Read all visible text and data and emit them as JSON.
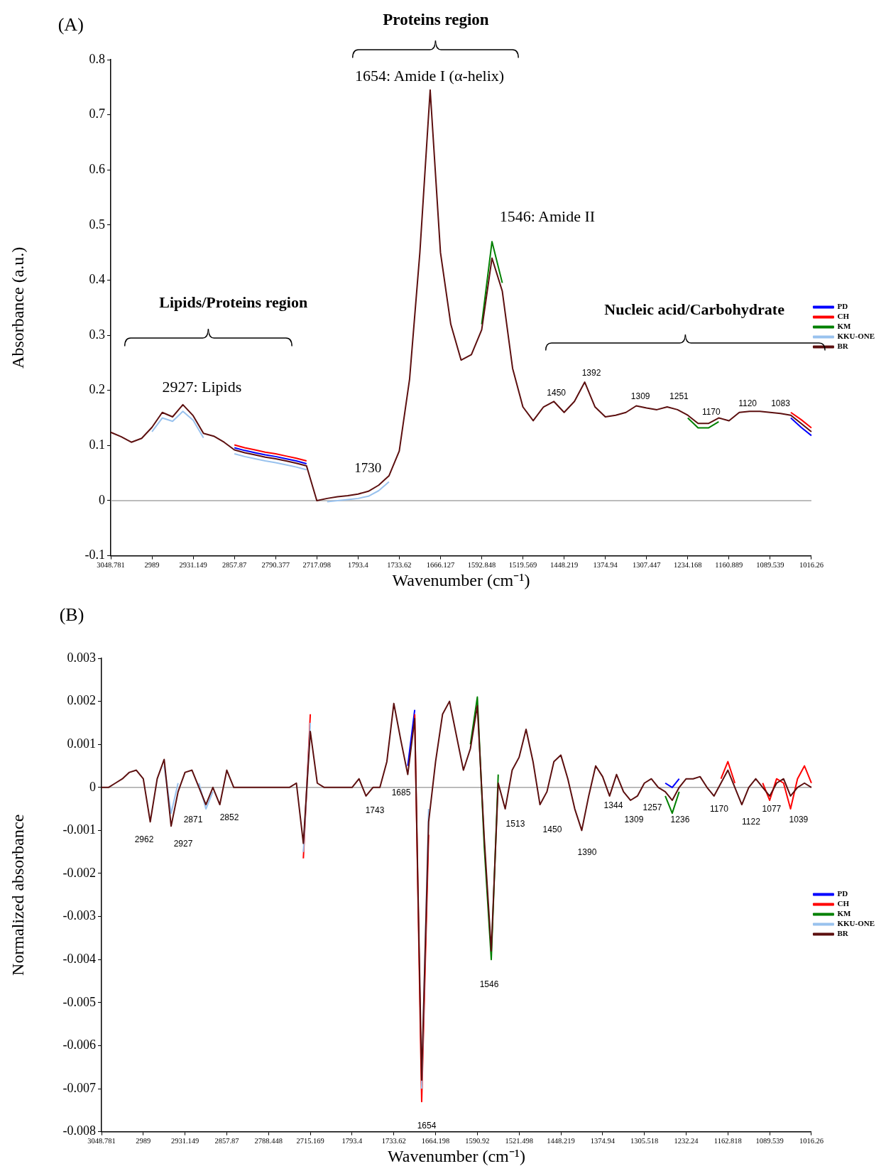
{
  "chart_data": [
    {
      "type": "line",
      "title": "(A)",
      "xlabel": "Wavenumber (cm⁻¹)",
      "ylabel": "Absorbance (a.u.)",
      "categories": [
        "3048.781",
        null,
        null,
        null,
        "2989",
        null,
        null,
        null,
        "2931.149",
        null,
        null,
        null,
        "2857.87",
        null,
        null,
        null,
        "2790.377",
        null,
        null,
        null,
        "2717.098",
        null,
        null,
        null,
        "1793.4",
        null,
        null,
        null,
        "1733.62",
        null,
        null,
        null,
        "1666.127",
        null,
        null,
        null,
        "1592.848",
        null,
        null,
        null,
        "1519.569",
        null,
        null,
        null,
        "1448.219",
        null,
        null,
        null,
        "1374.94",
        null,
        null,
        null,
        "1307.447",
        null,
        null,
        null,
        "1234.168",
        null,
        null,
        null,
        "1160.889",
        null,
        null,
        null,
        "1089.539",
        null,
        null,
        null,
        "1016.26"
      ],
      "series": [
        {
          "name": "PD",
          "color": "#0000ff",
          "values": [
            null,
            null,
            null,
            null,
            null,
            null,
            null,
            null,
            null,
            null,
            null,
            null,
            0.096,
            0.091,
            0.087,
            0.083,
            0.08,
            0.076,
            0.072,
            0.067,
            null,
            null,
            null,
            null,
            null,
            null,
            null,
            null,
            null,
            null,
            null,
            null,
            null,
            null,
            null,
            null,
            null,
            null,
            null,
            null,
            null,
            null,
            null,
            null,
            null,
            null,
            null,
            null,
            null,
            null,
            null,
            null,
            null,
            null,
            null,
            null,
            null,
            null,
            null,
            null,
            null,
            null,
            null,
            null,
            null,
            null,
            0.15,
            0.133,
            0.118
          ]
        },
        {
          "name": "CH",
          "color": "#ff0000",
          "values": [
            null,
            null,
            null,
            null,
            null,
            null,
            null,
            null,
            null,
            null,
            null,
            null,
            0.101,
            0.096,
            0.092,
            0.088,
            0.085,
            0.081,
            0.077,
            0.072,
            null,
            null,
            null,
            null,
            null,
            null,
            null,
            null,
            null,
            null,
            null,
            null,
            null,
            null,
            null,
            null,
            null,
            null,
            null,
            null,
            null,
            null,
            null,
            null,
            null,
            null,
            null,
            null,
            null,
            null,
            null,
            null,
            null,
            null,
            null,
            null,
            null,
            null,
            null,
            null,
            null,
            null,
            null,
            null,
            null,
            null,
            0.16,
            0.147,
            0.132
          ]
        },
        {
          "name": "KM",
          "color": "#008000",
          "values": [
            null,
            null,
            null,
            null,
            null,
            null,
            null,
            null,
            null,
            null,
            null,
            null,
            null,
            null,
            null,
            null,
            null,
            null,
            null,
            null,
            null,
            null,
            null,
            null,
            null,
            null,
            null,
            null,
            null,
            null,
            null,
            null,
            null,
            null,
            null,
            null,
            0.32,
            0.47,
            0.395,
            null,
            null,
            null,
            null,
            null,
            null,
            null,
            null,
            null,
            null,
            null,
            null,
            null,
            null,
            null,
            null,
            null,
            0.15,
            0.132,
            0.132,
            0.143,
            null,
            null,
            null,
            null,
            null,
            null,
            null,
            null,
            null
          ]
        },
        {
          "name": "KKU-ONE",
          "color": "#99c2ee",
          "values": [
            null,
            null,
            null,
            null,
            0.125,
            0.15,
            0.144,
            0.162,
            0.146,
            0.114,
            null,
            null,
            0.085,
            0.08,
            0.076,
            0.072,
            0.069,
            0.065,
            0.061,
            0.056,
            null,
            -0.002,
            0.0,
            0.002,
            0.004,
            0.008,
            0.018,
            0.034,
            null,
            null,
            null,
            null,
            null,
            null,
            null,
            null,
            null,
            null,
            null,
            null,
            null,
            null,
            null,
            null,
            null,
            null,
            null,
            null,
            null,
            null,
            null,
            null,
            null,
            null,
            null,
            null,
            null,
            null,
            null,
            null,
            null,
            null,
            null,
            null,
            null,
            null,
            null,
            null,
            null
          ]
        },
        {
          "name": "BR",
          "color": "#5c0f0f",
          "values": [
            0.124,
            0.116,
            0.106,
            0.113,
            0.133,
            0.16,
            0.152,
            0.174,
            0.154,
            0.122,
            0.117,
            0.106,
            0.092,
            0.087,
            0.083,
            0.079,
            0.076,
            0.072,
            0.068,
            0.063,
            0,
            0.004,
            0.007,
            0.009,
            0.012,
            0.017,
            0.028,
            0.045,
            0.09,
            0.22,
            0.45,
            0.745,
            0.45,
            0.32,
            0.255,
            0.265,
            0.31,
            0.44,
            0.38,
            0.24,
            0.17,
            0.145,
            0.17,
            0.18,
            0.16,
            0.18,
            0.215,
            0.17,
            0.152,
            0.155,
            0.16,
            0.172,
            0.168,
            0.165,
            0.17,
            0.165,
            0.155,
            0.14,
            0.14,
            0.15,
            0.145,
            0.16,
            0.162,
            0.162,
            0.16,
            0.158,
            0.155,
            0.14,
            0.125
          ]
        }
      ],
      "ylim": [
        -0.1,
        0.8
      ],
      "yticks": [
        -0.1,
        0,
        0.1,
        0.2,
        0.3,
        0.4,
        0.5,
        0.6,
        0.7,
        0.8
      ],
      "legend": "right",
      "ref_lines": [
        {
          "axis": "y",
          "value": 0,
          "color": "#a6a6a6"
        }
      ],
      "annotations": [
        "Proteins region",
        "1654: Amide I (α-helix)",
        "1546: Amide II",
        "Lipids/Proteins region",
        "Nucleic acid/Carbohydrate",
        "2927: Lipids",
        "1730",
        "1450",
        "1392",
        "1309",
        "1251",
        "1170",
        "1120",
        "1083"
      ]
    },
    {
      "type": "line",
      "title": "(B)",
      "xlabel": "Wavenumber (cm⁻¹)",
      "ylabel": "Normalized absorbance",
      "categories": [
        "3048.781",
        null,
        null,
        null,
        null,
        null,
        "2989",
        null,
        null,
        null,
        null,
        null,
        "2931.149",
        null,
        null,
        null,
        null,
        null,
        "2857.87",
        null,
        null,
        null,
        null,
        null,
        "2788.448",
        null,
        null,
        null,
        null,
        null,
        "2715.169",
        null,
        null,
        null,
        null,
        null,
        "1793.4",
        null,
        null,
        null,
        null,
        null,
        "1733.62",
        null,
        null,
        null,
        null,
        null,
        "1664.198",
        null,
        null,
        null,
        null,
        null,
        "1590.92",
        null,
        null,
        null,
        null,
        null,
        "1521.498",
        null,
        null,
        null,
        null,
        null,
        "1448.219",
        null,
        null,
        null,
        null,
        null,
        "1374.94",
        null,
        null,
        null,
        null,
        null,
        "1305.518",
        null,
        null,
        null,
        null,
        null,
        "1232.24",
        null,
        null,
        null,
        null,
        null,
        "1162.818",
        null,
        null,
        null,
        null,
        null,
        "1089.539",
        null,
        null,
        null,
        null,
        null,
        "1016.26"
      ],
      "series": [
        {
          "name": "PD",
          "color": "#0000ff",
          "values": [
            null,
            null,
            null,
            null,
            null,
            null,
            null,
            null,
            null,
            null,
            null,
            null,
            null,
            null,
            null,
            null,
            null,
            null,
            null,
            null,
            null,
            null,
            null,
            null,
            null,
            null,
            null,
            null,
            null,
            null,
            null,
            null,
            null,
            null,
            null,
            null,
            null,
            null,
            null,
            null,
            null,
            null,
            null,
            null,
            0.0005,
            0.0018,
            null,
            null,
            null,
            null,
            null,
            null,
            null,
            null,
            null,
            null,
            null,
            null,
            null,
            null,
            null,
            null,
            null,
            null,
            null,
            null,
            null,
            null,
            null,
            null,
            null,
            null,
            null,
            null,
            null,
            null,
            null,
            null,
            null,
            null,
            null,
            0.0001,
            0,
            0.0002,
            null,
            null,
            null,
            null,
            null,
            null,
            null,
            null,
            null,
            null,
            null,
            null,
            null,
            null,
            null,
            null,
            null,
            null,
            null
          ]
        },
        {
          "name": "CH",
          "color": "#ff0000",
          "values": [
            null,
            null,
            null,
            null,
            null,
            null,
            null,
            null,
            null,
            null,
            null,
            null,
            null,
            null,
            null,
            null,
            null,
            null,
            null,
            null,
            null,
            null,
            null,
            null,
            null,
            null,
            null,
            null,
            null,
            -0.00165,
            0.0017,
            null,
            null,
            null,
            null,
            null,
            null,
            null,
            null,
            null,
            null,
            null,
            null,
            null,
            null,
            0.0017,
            -0.0073,
            -0.0011,
            null,
            null,
            null,
            null,
            null,
            null,
            null,
            null,
            null,
            null,
            null,
            null,
            null,
            null,
            null,
            null,
            null,
            null,
            null,
            null,
            null,
            null,
            null,
            null,
            null,
            null,
            null,
            null,
            null,
            null,
            null,
            null,
            null,
            null,
            null,
            null,
            null,
            null,
            null,
            null,
            null,
            0.0002,
            0.0006,
            0.0001,
            null,
            null,
            null,
            0.0001,
            -0.0003,
            0.0002,
            0.0001,
            -0.0005,
            0.0002,
            0.0005,
            0.0001
          ]
        },
        {
          "name": "KM",
          "color": "#008000",
          "values": [
            null,
            null,
            null,
            null,
            null,
            null,
            null,
            null,
            null,
            null,
            null,
            null,
            null,
            null,
            null,
            null,
            null,
            null,
            null,
            null,
            null,
            null,
            null,
            null,
            null,
            null,
            null,
            null,
            null,
            null,
            null,
            null,
            null,
            null,
            null,
            null,
            null,
            null,
            null,
            null,
            null,
            null,
            null,
            null,
            null,
            null,
            null,
            null,
            null,
            null,
            null,
            null,
            null,
            0.001,
            0.0021,
            -0.0014,
            -0.004,
            0.0003,
            null,
            null,
            null,
            null,
            null,
            null,
            null,
            null,
            null,
            null,
            null,
            null,
            null,
            null,
            null,
            null,
            null,
            null,
            null,
            null,
            null,
            null,
            null,
            -0.0002,
            -0.0006,
            -0.0001,
            null,
            null,
            null,
            null,
            null,
            null,
            null,
            null,
            null,
            null,
            null,
            null,
            null,
            null,
            null,
            null,
            null,
            null,
            null
          ]
        },
        {
          "name": "KKU-ONE",
          "color": "#99c2ee",
          "values": [
            null,
            null,
            null,
            null,
            null,
            null,
            null,
            null,
            null,
            0.0005,
            -0.0006,
            0.0001,
            null,
            null,
            0.0001,
            -0.0005,
            -0.0001,
            null,
            null,
            null,
            null,
            null,
            null,
            null,
            null,
            null,
            null,
            null,
            null,
            -0.0015,
            0.0015,
            null,
            null,
            null,
            null,
            null,
            null,
            null,
            null,
            null,
            null,
            null,
            null,
            null,
            null,
            null,
            -0.007,
            -0.0005,
            null,
            null,
            null,
            null,
            null,
            null,
            null,
            null,
            null,
            null,
            null,
            null,
            null,
            null,
            null,
            null,
            null,
            null,
            null,
            null,
            null,
            null,
            null,
            null,
            null,
            null,
            null,
            null,
            null,
            null,
            null,
            null,
            null,
            null,
            null,
            null,
            null,
            null,
            null,
            null,
            null,
            null,
            null,
            null,
            null,
            null,
            null,
            null,
            null,
            null,
            null,
            null,
            null,
            null,
            null
          ]
        },
        {
          "name": "BR",
          "color": "#5c0f0f",
          "values": [
            0,
            0,
            0.0001,
            0.0002,
            0.00035,
            0.0004,
            0.0002,
            -0.0008,
            0.0002,
            0.00065,
            -0.0009,
            -0.0001,
            0.00035,
            0.0004,
            0,
            -0.0004,
            0,
            -0.0004,
            0.0004,
            0,
            0,
            0,
            0,
            0,
            0,
            0,
            0,
            0,
            0.0001,
            -0.0013,
            0.0013,
            0.0001,
            0,
            0,
            0,
            0,
            0,
            0.0002,
            -0.0002,
            0,
            0,
            0.0006,
            0.00195,
            0.0011,
            0.0003,
            0.0016,
            -0.0068,
            -0.0008,
            0.0006,
            0.0017,
            0.002,
            0.0012,
            0.0004,
            0.0009,
            0.0019,
            -0.0012,
            -0.0038,
            0.0001,
            -0.0005,
            0.0004,
            0.0007,
            0.00135,
            0.0006,
            -0.0004,
            -0.0001,
            0.0006,
            0.00075,
            0.0002,
            -0.0005,
            -0.001,
            -0.0002,
            0.0005,
            0.00025,
            -0.0002,
            0.0003,
            -0.0001,
            -0.0003,
            -0.0002,
            0.0001,
            0.0002,
            0,
            -0.0001,
            -0.0003,
            0,
            0.0002,
            0.0002,
            0.00025,
            0,
            -0.0002,
            0.0001,
            0.0004,
            0,
            -0.0004,
            0,
            0.0002,
            0,
            -0.0002,
            0.0001,
            0.0002,
            -0.0002,
            0,
            0.0001,
            0
          ]
        }
      ],
      "ylim": [
        -0.008,
        0.003
      ],
      "yticks": [
        -0.008,
        -0.007,
        -0.006,
        -0.005,
        -0.004,
        -0.003,
        -0.002,
        -0.001,
        0,
        0.001,
        0.002,
        0.003
      ],
      "legend": "right",
      "ref_lines": [
        {
          "axis": "y",
          "value": 0,
          "color": "#a6a6a6"
        }
      ],
      "annotations": [
        "2962",
        "2927",
        "2871",
        "2852",
        "1743",
        "1685",
        "1654",
        "1546",
        "1513",
        "1450",
        "1390",
        "1344",
        "1309",
        "1257",
        "1236",
        "1170",
        "1122",
        "1077",
        "1039"
      ]
    }
  ]
}
